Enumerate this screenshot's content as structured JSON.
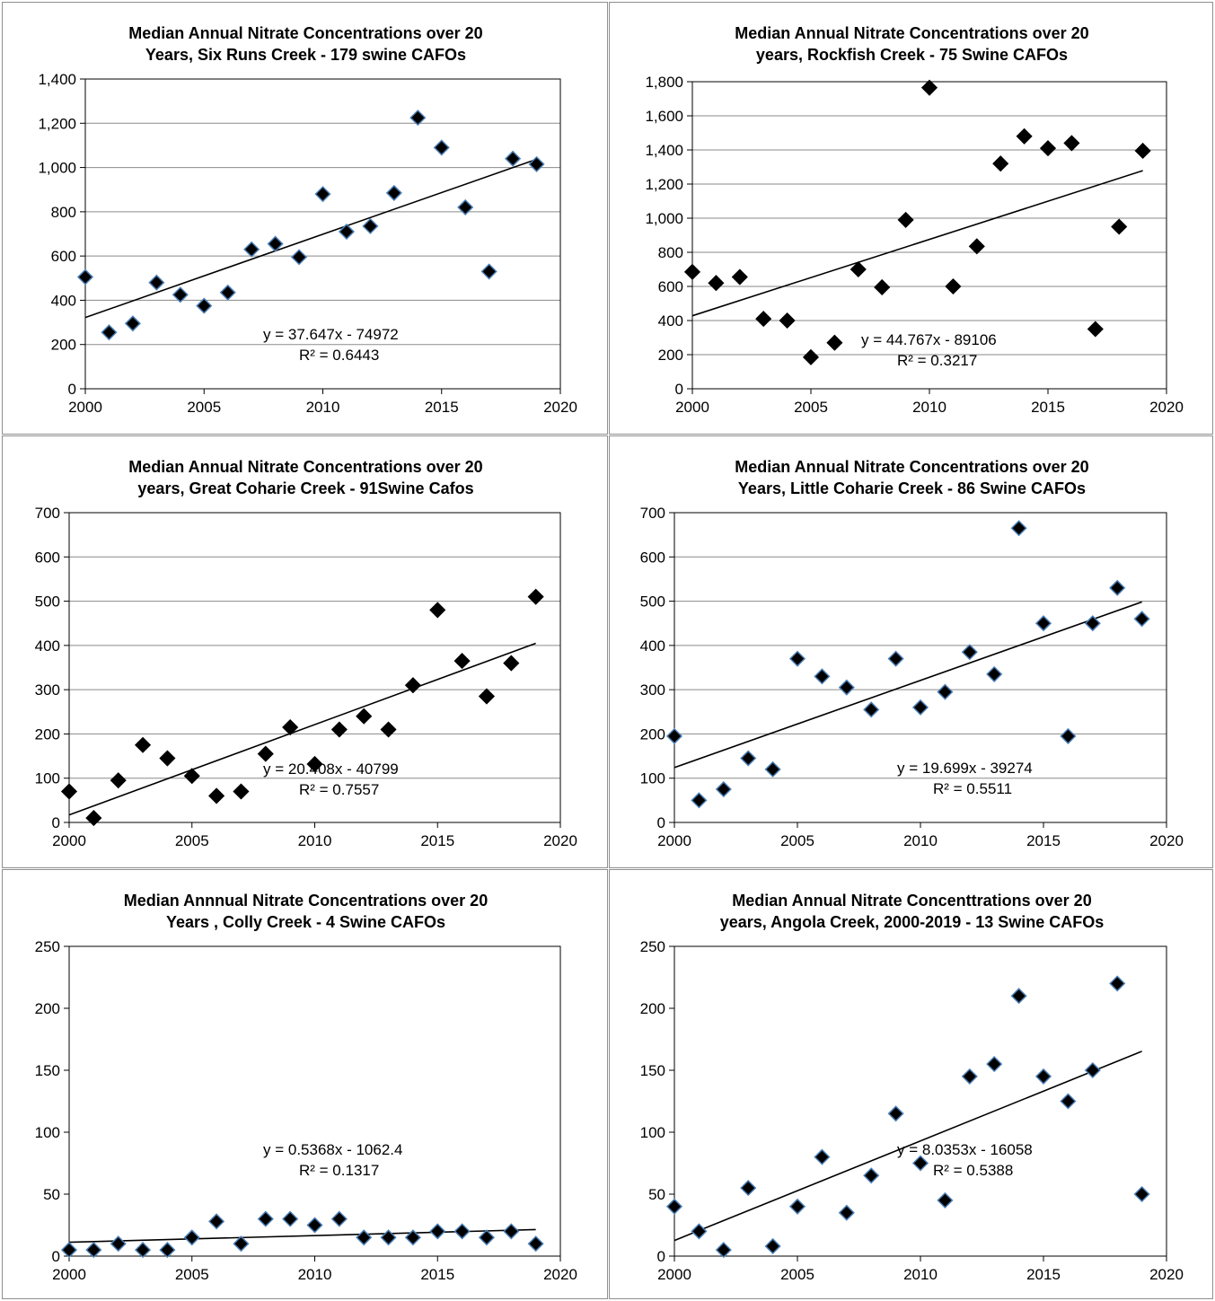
{
  "colors": {
    "marker_fill": "#000000",
    "marker_stroke_blue": "#4a7eb5",
    "gridline": "#8a8a8a",
    "border": "#8f8f8f"
  },
  "chart_data": [
    {
      "type": "scatter",
      "title": [
        "Median Annual Nitrate Concentrations over 20",
        "Years,  Six Runs Creek - 179 swine CAFOs"
      ],
      "xlim": [
        2000,
        2020
      ],
      "ylim": [
        0,
        1400
      ],
      "xstep": 5,
      "ystep": 200,
      "yticks": [
        "0",
        "200",
        "400",
        "600",
        "800",
        "1,000",
        "1,200",
        "1,400"
      ],
      "xticks": [
        "2000",
        "2005",
        "2010",
        "2015",
        "2020"
      ],
      "x": [
        2000,
        2001,
        2002,
        2003,
        2004,
        2005,
        2006,
        2007,
        2008,
        2009,
        2010,
        2011,
        2012,
        2013,
        2014,
        2015,
        2016,
        2017,
        2018,
        2019
      ],
      "y": [
        505,
        255,
        295,
        480,
        425,
        375,
        435,
        630,
        655,
        595,
        880,
        710,
        735,
        885,
        1225,
        1090,
        820,
        530,
        1040,
        1015
      ],
      "marker_outline": "blue",
      "trendline": {
        "slope": 37.647,
        "intercept": -74972,
        "equation": "y = 37.647x - 74972",
        "r2": "R² = 0.6443"
      },
      "grid": true
    },
    {
      "type": "scatter",
      "title": [
        "Median Annual Nitrate Concentrations over 20",
        "years, Rockfish Creek - 75 Swine CAFOs"
      ],
      "xlim": [
        2000,
        2020
      ],
      "ylim": [
        0,
        1800
      ],
      "xstep": 5,
      "ystep": 200,
      "yticks": [
        "0",
        "200",
        "400",
        "600",
        "800",
        "1,000",
        "1,200",
        "1,400",
        "1,600",
        "1,800"
      ],
      "xticks": [
        "2000",
        "2005",
        "2010",
        "2015",
        "2020"
      ],
      "x": [
        2000,
        2001,
        2002,
        2003,
        2004,
        2005,
        2006,
        2007,
        2008,
        2009,
        2010,
        2011,
        2012,
        2013,
        2014,
        2015,
        2016,
        2017,
        2018,
        2019
      ],
      "y": [
        685,
        620,
        655,
        410,
        400,
        185,
        270,
        700,
        595,
        990,
        1765,
        600,
        835,
        1320,
        1480,
        1410,
        1440,
        350,
        950,
        1395
      ],
      "marker_outline": "black",
      "trendline": {
        "slope": 44.767,
        "intercept": -89106,
        "equation": "y = 44.767x - 89106",
        "r2": "R² = 0.3217"
      },
      "grid": true
    },
    {
      "type": "scatter",
      "title": [
        "Median Annual Nitrate Concentrations over 20",
        "years, Great Coharie Creek - 91Swine Cafos"
      ],
      "xlim": [
        2000,
        2020
      ],
      "ylim": [
        0,
        700
      ],
      "xstep": 5,
      "ystep": 100,
      "yticks": [
        "0",
        "100",
        "200",
        "300",
        "400",
        "500",
        "600",
        "700"
      ],
      "xticks": [
        "2000",
        "2005",
        "2010",
        "2015",
        "2020"
      ],
      "x": [
        2000,
        2001,
        2002,
        2003,
        2004,
        2005,
        2006,
        2007,
        2008,
        2009,
        2010,
        2011,
        2012,
        2013,
        2014,
        2015,
        2016,
        2017,
        2018,
        2019
      ],
      "y": [
        70,
        10,
        95,
        175,
        145,
        105,
        60,
        70,
        155,
        215,
        132,
        210,
        240,
        210,
        310,
        480,
        365,
        285,
        360,
        510
      ],
      "marker_outline": "black",
      "trendline": {
        "slope": 20.408,
        "intercept": -40799,
        "equation": "y = 20.408x - 40799",
        "r2": "R² = 0.7557"
      },
      "grid": true
    },
    {
      "type": "scatter",
      "title": [
        "Median Annual Nitrate Concentrations over 20",
        "Years, Little Coharie Creek - 86 Swine CAFOs"
      ],
      "xlim": [
        2000,
        2020
      ],
      "ylim": [
        0,
        700
      ],
      "xstep": 5,
      "ystep": 100,
      "yticks": [
        "0",
        "100",
        "200",
        "300",
        "400",
        "500",
        "600",
        "700"
      ],
      "xticks": [
        "2000",
        "2005",
        "2010",
        "2015",
        "2020"
      ],
      "x": [
        2000,
        2001,
        2002,
        2003,
        2004,
        2005,
        2006,
        2007,
        2008,
        2009,
        2010,
        2011,
        2012,
        2013,
        2014,
        2015,
        2016,
        2017,
        2018,
        2019
      ],
      "y": [
        195,
        50,
        75,
        145,
        120,
        370,
        330,
        305,
        255,
        370,
        260,
        295,
        385,
        335,
        665,
        450,
        195,
        450,
        530,
        460
      ],
      "marker_outline": "blue",
      "trendline": {
        "slope": 19.699,
        "intercept": -39274,
        "equation": "y = 19.699x - 39274",
        "r2": "R² = 0.5511"
      },
      "grid": true
    },
    {
      "type": "scatter",
      "title": [
        "Median Annnual Nitrate  Concentrations over 20",
        "Years , Colly Creek - 4 Swine CAFOs"
      ],
      "xlim": [
        2000,
        2020
      ],
      "ylim": [
        0,
        250
      ],
      "xstep": 5,
      "ystep": 50,
      "yticks": [
        "0",
        "50",
        "100",
        "150",
        "200",
        "250"
      ],
      "xticks": [
        "2000",
        "2005",
        "2010",
        "2015",
        "2020"
      ],
      "x": [
        2000,
        2001,
        2002,
        2003,
        2004,
        2005,
        2006,
        2007,
        2008,
        2009,
        2010,
        2011,
        2012,
        2013,
        2014,
        2015,
        2016,
        2017,
        2018,
        2019
      ],
      "y": [
        5,
        5,
        10,
        5,
        5,
        15,
        28,
        10,
        30,
        30,
        25,
        30,
        15,
        15,
        15,
        20,
        20,
        15,
        20,
        10
      ],
      "marker_outline": "blue",
      "trendline": {
        "slope": 0.5368,
        "intercept": -1062.4,
        "equation": "y = 0.5368x - 1062.4",
        "r2": "R² = 0.1317"
      },
      "grid": false
    },
    {
      "type": "scatter",
      "title": [
        "Median Annual Nitrate  Concenttrations over 20",
        "years, Angola Creek, 2000-2019 - 13 Swine CAFOs"
      ],
      "xlim": [
        2000,
        2020
      ],
      "ylim": [
        0,
        250
      ],
      "xstep": 5,
      "ystep": 50,
      "yticks": [
        "0",
        "50",
        "100",
        "150",
        "200",
        "250"
      ],
      "xticks": [
        "2000",
        "2005",
        "2010",
        "2015",
        "2020"
      ],
      "x": [
        2000,
        2001,
        2002,
        2003,
        2004,
        2005,
        2006,
        2007,
        2008,
        2009,
        2010,
        2011,
        2012,
        2013,
        2014,
        2015,
        2016,
        2017,
        2018,
        2019
      ],
      "y": [
        40,
        20,
        5,
        55,
        8,
        40,
        80,
        35,
        65,
        115,
        75,
        45,
        145,
        155,
        210,
        145,
        125,
        150,
        220,
        50
      ],
      "marker_outline": "blue",
      "trendline": {
        "slope": 8.0353,
        "intercept": -16058,
        "equation": "y = 8.0353x - 16058",
        "r2": "R² = 0.5388"
      },
      "grid": false
    }
  ]
}
